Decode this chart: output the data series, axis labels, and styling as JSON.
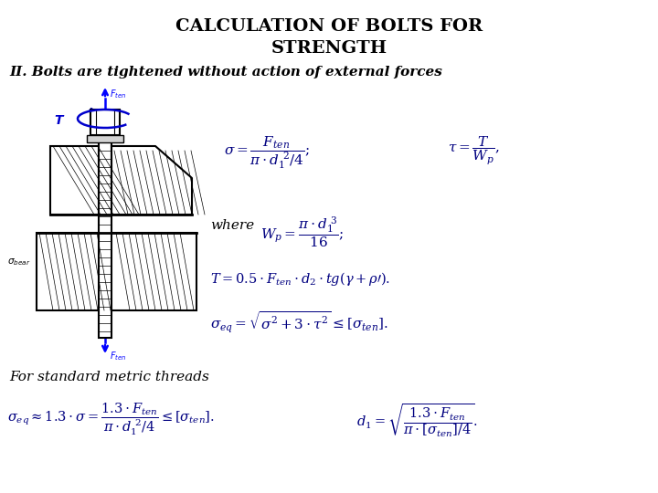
{
  "title_line1": "CALCULATION OF BOLTS FOR",
  "title_line2": "STRENGTH",
  "subtitle": "II. Bolts are tightened without action of external forces",
  "background_color": "#ffffff",
  "title_color": "#000000",
  "subtitle_color": "#000000",
  "formula_color": "#000080",
  "text_color": "#000000",
  "blue_color": "#0000ff",
  "dark_blue": "#0000cc"
}
